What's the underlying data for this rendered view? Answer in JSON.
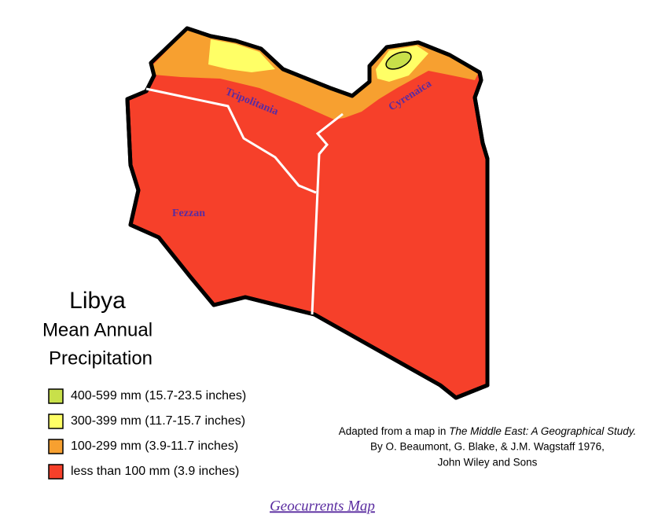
{
  "map": {
    "title": "Libya",
    "subtitle": [
      "Mean Annual",
      "Precipitation"
    ],
    "regions": [
      "Tripolitania",
      "Cyrenaica",
      "Fezzan"
    ],
    "legend": [
      {
        "label": "400-599 mm (15.7-23.5 inches)",
        "color": "#c8e04a"
      },
      {
        "label": "300-399 mm (11.7-15.7 inches)",
        "color": "#ffff66"
      },
      {
        "label": "100-299 mm (3.9-11.7 inches)",
        "color": "#f7a030"
      },
      {
        "label": "less than 100 mm (3.9 inches)",
        "color": "#f6402a"
      }
    ],
    "citation": {
      "line1_prefix": "Adapted from a map in ",
      "line1_work": "The Middle East: A Geographical Study.",
      "line2": "By O. Beaumont, G. Blake, & J.M. Wagstaff 1976,",
      "line3": "John Wiley and Sons"
    },
    "footer": "Geocurrents Map"
  }
}
